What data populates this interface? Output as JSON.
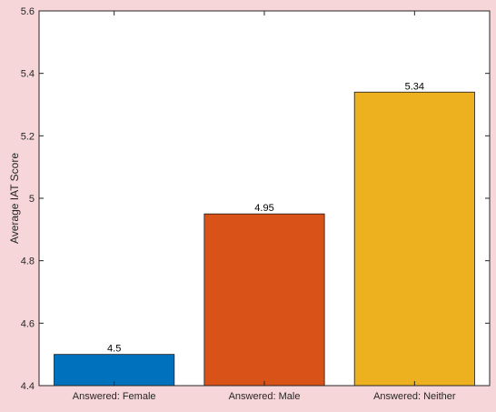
{
  "chart_data": {
    "type": "bar",
    "title": "",
    "xlabel": "",
    "ylabel": "Average IAT Score",
    "categories": [
      "Answered: Female",
      "Answered: Male",
      "Answered: Neither"
    ],
    "values": [
      4.5,
      4.95,
      5.34
    ],
    "value_labels": [
      "4.5",
      "4.95",
      "5.34"
    ],
    "ylim": [
      4.4,
      5.6
    ],
    "yticks": [
      4.4,
      4.6,
      4.8,
      5.0,
      5.2,
      5.4,
      5.6
    ],
    "ytick_labels": [
      "4.4",
      "4.6",
      "4.8",
      "5",
      "5.2",
      "5.4",
      "5.6"
    ],
    "grid": false,
    "legend": "none",
    "colors": [
      "#0072bd",
      "#d95319",
      "#edb120"
    ]
  }
}
